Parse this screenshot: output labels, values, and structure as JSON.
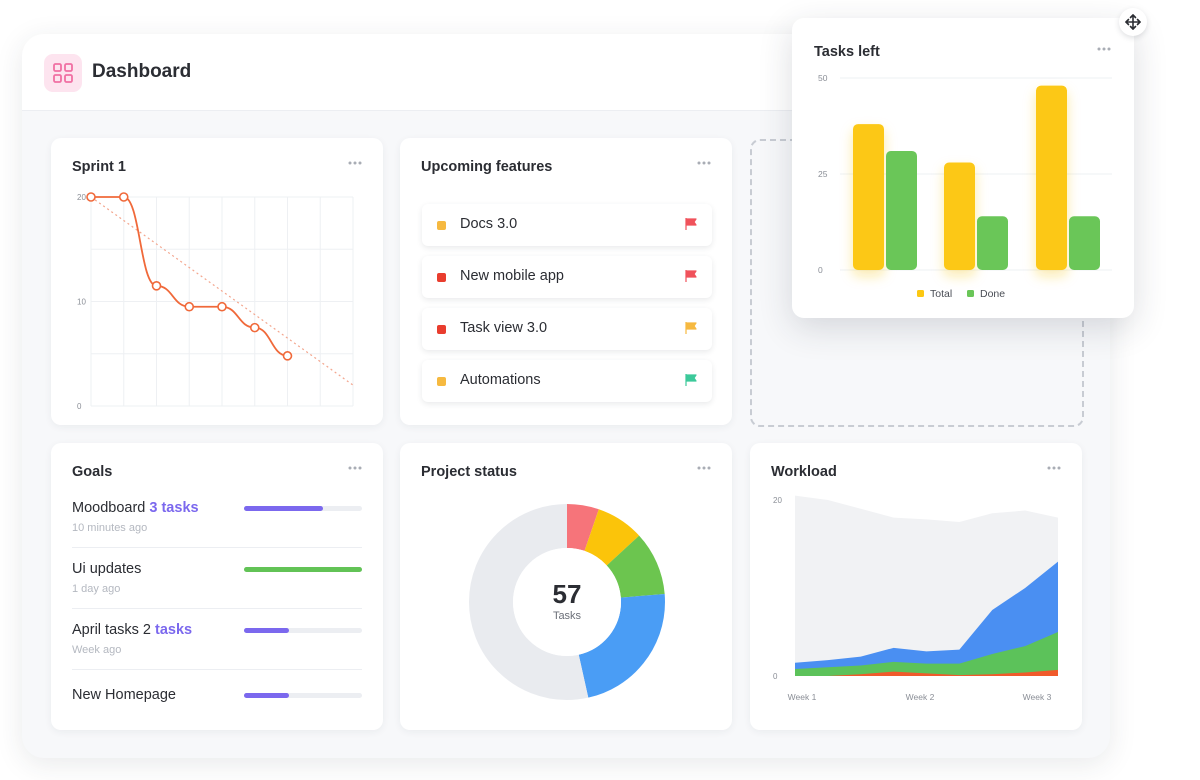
{
  "header": {
    "title": "Dashboard",
    "icon": "dashboard-grid-icon"
  },
  "sprint": {
    "title": "Sprint 1",
    "chart_data": {
      "type": "line",
      "y_ticks": [
        "20",
        "10",
        "0"
      ],
      "ylim": [
        0,
        20
      ],
      "x": [
        0,
        1,
        2,
        3,
        4,
        5,
        6
      ],
      "values": [
        20,
        20,
        11.5,
        9.5,
        9.5,
        7.5,
        4.8
      ],
      "ideal_line": [
        [
          0,
          20
        ],
        [
          8,
          2
        ]
      ],
      "line_color": "#f0693a",
      "grid": true
    }
  },
  "features": {
    "title": "Upcoming features",
    "items": [
      {
        "label": "Docs 3.0",
        "dot_color": "#f6b940",
        "flag_color": "#f0525b"
      },
      {
        "label": "New mobile app",
        "dot_color": "#e93d2e",
        "flag_color": "#f0525b"
      },
      {
        "label": "Task view 3.0",
        "dot_color": "#e93d2e",
        "flag_color": "#f6b940"
      },
      {
        "label": "Automations",
        "dot_color": "#f6b940",
        "flag_color": "#3cc99a"
      }
    ]
  },
  "goals": {
    "title": "Goals",
    "items": [
      {
        "text": "Moodboard ",
        "highlight": "3 tasks",
        "sub": "10 minutes ago",
        "progress": 0.67,
        "color": "#7b68ee"
      },
      {
        "text": "Ui updates",
        "highlight": "",
        "sub": "1 day ago",
        "progress": 1.0,
        "color": "#62c356"
      },
      {
        "text": "April tasks 2 ",
        "highlight": "tasks",
        "sub": "Week ago",
        "progress": 0.38,
        "color": "#7b68ee"
      },
      {
        "text": "New Homepage",
        "highlight": "",
        "sub": "",
        "progress": 0.38,
        "color": "#7b68ee"
      }
    ]
  },
  "project_status": {
    "title": "Project status",
    "total": "57",
    "total_label": "Tasks",
    "chart_data": {
      "type": "pie",
      "slices": [
        {
          "value": 3,
          "color": "#f6747a"
        },
        {
          "value": 4.5,
          "color": "#fbc40a"
        },
        {
          "value": 6,
          "color": "#6cc54f"
        },
        {
          "value": 13,
          "color": "#4a9df5"
        },
        {
          "value": 30.5,
          "color": "#e9ebef"
        }
      ]
    }
  },
  "workload": {
    "title": "Workload",
    "chart_data": {
      "type": "area",
      "y_ticks": [
        "20",
        "0"
      ],
      "ylim": [
        0,
        20
      ],
      "x_labels": [
        "Week 1",
        "Week 2",
        "Week 3"
      ],
      "x": [
        0,
        1,
        2,
        3,
        4,
        5,
        6,
        7,
        8
      ],
      "series": [
        {
          "values": [
            20.5,
            20,
            19,
            18,
            17.8,
            17.5,
            18.5,
            18.8,
            18
          ],
          "color": "#f1f2f4"
        },
        {
          "values": [
            1.5,
            1.8,
            2.2,
            3.2,
            2.8,
            3.0,
            7.5,
            10,
            13
          ],
          "color": "#4a8ff2"
        },
        {
          "values": [
            0.8,
            1,
            1.2,
            1.6,
            1.4,
            1.4,
            2.5,
            3.4,
            5
          ],
          "color": "#5cc25a"
        },
        {
          "values": [
            0,
            0,
            0.2,
            0.5,
            0.3,
            0.1,
            0.2,
            0.4,
            0.7
          ],
          "color": "#f05a2b"
        }
      ]
    }
  },
  "tasks_left": {
    "title": "Tasks left",
    "chart_data": {
      "type": "bar",
      "categories": [
        "",
        "",
        ""
      ],
      "y_ticks": [
        "50",
        "25",
        "0"
      ],
      "ylim": [
        0,
        50
      ],
      "series": [
        {
          "name": "Total",
          "values": [
            38,
            28,
            48
          ],
          "color": "#fcc812"
        },
        {
          "name": "Done",
          "values": [
            31,
            14,
            14
          ],
          "color": "#6ac658"
        }
      ],
      "legend": "bottom",
      "grid": true
    }
  }
}
